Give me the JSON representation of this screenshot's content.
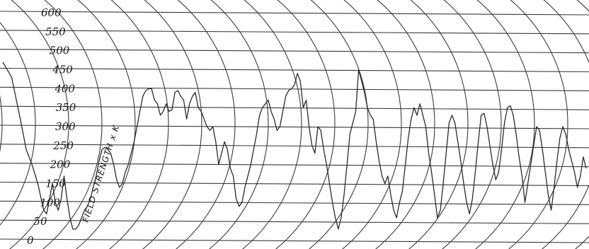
{
  "chart_data": {
    "type": "line",
    "title": "",
    "ylabel": "FIELD STRENGTH x K",
    "xlabel": "",
    "ylim": [
      0,
      600
    ],
    "yticks": [
      "0",
      "50",
      "100",
      "150",
      "200",
      "250",
      "300",
      "350",
      "400",
      "450",
      "500",
      "550",
      "600"
    ],
    "grid": true,
    "legend": "none",
    "line_color": "#2a2a2a",
    "grid_color": "#3a3a3a",
    "series": [
      {
        "values": [
          [
            0,
            470
          ],
          [
            3,
            430
          ],
          [
            6,
            320
          ],
          [
            8,
            240
          ],
          [
            10,
            200
          ],
          [
            12,
            150
          ],
          [
            14,
            80
          ],
          [
            15,
            70
          ],
          [
            16,
            110
          ],
          [
            17,
            150
          ],
          [
            18,
            100
          ],
          [
            19,
            80
          ],
          [
            20,
            110
          ],
          [
            21,
            170
          ],
          [
            22,
            110
          ],
          [
            23,
            60
          ],
          [
            24,
            30
          ],
          [
            25,
            30
          ],
          [
            26,
            40
          ],
          [
            27,
            60
          ],
          [
            28,
            80
          ],
          [
            29,
            90
          ],
          [
            30,
            110
          ],
          [
            31,
            140
          ],
          [
            32,
            170
          ],
          [
            33,
            210
          ],
          [
            34,
            240
          ],
          [
            35,
            245
          ],
          [
            36,
            240
          ],
          [
            37,
            230
          ],
          [
            38,
            200
          ],
          [
            39,
            160
          ],
          [
            40,
            140
          ],
          [
            41,
            150
          ],
          [
            42,
            180
          ],
          [
            43,
            200
          ],
          [
            44,
            230
          ],
          [
            45,
            260
          ],
          [
            46,
            300
          ],
          [
            47,
            340
          ],
          [
            48,
            380
          ],
          [
            49,
            395
          ],
          [
            50,
            400
          ],
          [
            51,
            400
          ],
          [
            52,
            370
          ],
          [
            53,
            360
          ],
          [
            54,
            330
          ],
          [
            55,
            340
          ],
          [
            56,
            360
          ],
          [
            57,
            340
          ],
          [
            58,
            345
          ],
          [
            59,
            390
          ],
          [
            60,
            395
          ],
          [
            61,
            380
          ],
          [
            62,
            370
          ],
          [
            63,
            320
          ],
          [
            64,
            360
          ],
          [
            65,
            380
          ],
          [
            66,
            390
          ],
          [
            67,
            350
          ],
          [
            68,
            340
          ],
          [
            69,
            320
          ],
          [
            70,
            300
          ],
          [
            71,
            290
          ],
          [
            72,
            300
          ],
          [
            73,
            260
          ],
          [
            74,
            200
          ],
          [
            75,
            230
          ],
          [
            76,
            260
          ],
          [
            77,
            240
          ],
          [
            78,
            190
          ],
          [
            79,
            170
          ],
          [
            80,
            110
          ],
          [
            81,
            90
          ],
          [
            82,
            100
          ],
          [
            83,
            140
          ],
          [
            84,
            170
          ],
          [
            85,
            200
          ],
          [
            86,
            240
          ],
          [
            87,
            280
          ],
          [
            88,
            330
          ],
          [
            89,
            350
          ],
          [
            90,
            360
          ],
          [
            91,
            370
          ],
          [
            92,
            340
          ],
          [
            93,
            320
          ],
          [
            94,
            290
          ],
          [
            95,
            300
          ],
          [
            96,
            340
          ],
          [
            97,
            380
          ],
          [
            98,
            395
          ],
          [
            99,
            400
          ],
          [
            100,
            410
          ],
          [
            101,
            440
          ],
          [
            102,
            420
          ],
          [
            103,
            350
          ],
          [
            104,
            370
          ],
          [
            105,
            300
          ],
          [
            106,
            250
          ],
          [
            107,
            230
          ],
          [
            108,
            300
          ],
          [
            109,
            290
          ],
          [
            110,
            240
          ],
          [
            111,
            200
          ],
          [
            112,
            150
          ],
          [
            113,
            100
          ],
          [
            114,
            60
          ],
          [
            115,
            30
          ],
          [
            116,
            60
          ],
          [
            117,
            120
          ],
          [
            118,
            200
          ],
          [
            119,
            280
          ],
          [
            120,
            310
          ],
          [
            121,
            340
          ],
          [
            122,
            450
          ],
          [
            123,
            420
          ],
          [
            124,
            390
          ],
          [
            125,
            350
          ],
          [
            126,
            330
          ],
          [
            127,
            320
          ],
          [
            128,
            260
          ],
          [
            129,
            210
          ],
          [
            130,
            170
          ],
          [
            131,
            150
          ],
          [
            132,
            170
          ],
          [
            133,
            120
          ],
          [
            134,
            80
          ],
          [
            135,
            60
          ],
          [
            136,
            100
          ],
          [
            137,
            130
          ],
          [
            138,
            200
          ],
          [
            139,
            270
          ],
          [
            140,
            320
          ],
          [
            141,
            350
          ],
          [
            142,
            330
          ],
          [
            143,
            360
          ],
          [
            144,
            330
          ],
          [
            145,
            300
          ],
          [
            146,
            230
          ],
          [
            147,
            180
          ],
          [
            148,
            120
          ],
          [
            149,
            60
          ],
          [
            150,
            80
          ],
          [
            151,
            150
          ],
          [
            152,
            230
          ],
          [
            153,
            310
          ],
          [
            154,
            330
          ],
          [
            155,
            310
          ],
          [
            156,
            260
          ],
          [
            157,
            210
          ],
          [
            158,
            150
          ],
          [
            159,
            100
          ],
          [
            160,
            70
          ],
          [
            161,
            110
          ],
          [
            162,
            180
          ],
          [
            163,
            260
          ],
          [
            164,
            330
          ],
          [
            165,
            335
          ],
          [
            166,
            300
          ],
          [
            167,
            250
          ],
          [
            168,
            200
          ],
          [
            169,
            160
          ],
          [
            170,
            180
          ],
          [
            171,
            240
          ],
          [
            172,
            310
          ],
          [
            173,
            350
          ],
          [
            174,
            355
          ],
          [
            175,
            330
          ],
          [
            176,
            280
          ],
          [
            177,
            220
          ],
          [
            178,
            170
          ],
          [
            179,
            100
          ],
          [
            180,
            150
          ],
          [
            181,
            200
          ],
          [
            182,
            250
          ],
          [
            183,
            300
          ],
          [
            184,
            290
          ],
          [
            185,
            240
          ],
          [
            186,
            180
          ],
          [
            187,
            120
          ],
          [
            188,
            80
          ],
          [
            189,
            140
          ],
          [
            190,
            210
          ],
          [
            191,
            270
          ],
          [
            192,
            300
          ],
          [
            193,
            280
          ],
          [
            194,
            240
          ],
          [
            195,
            210
          ],
          [
            196,
            180
          ],
          [
            197,
            140
          ],
          [
            198,
            170
          ],
          [
            199,
            220
          ],
          [
            200,
            190
          ]
        ]
      }
    ]
  }
}
